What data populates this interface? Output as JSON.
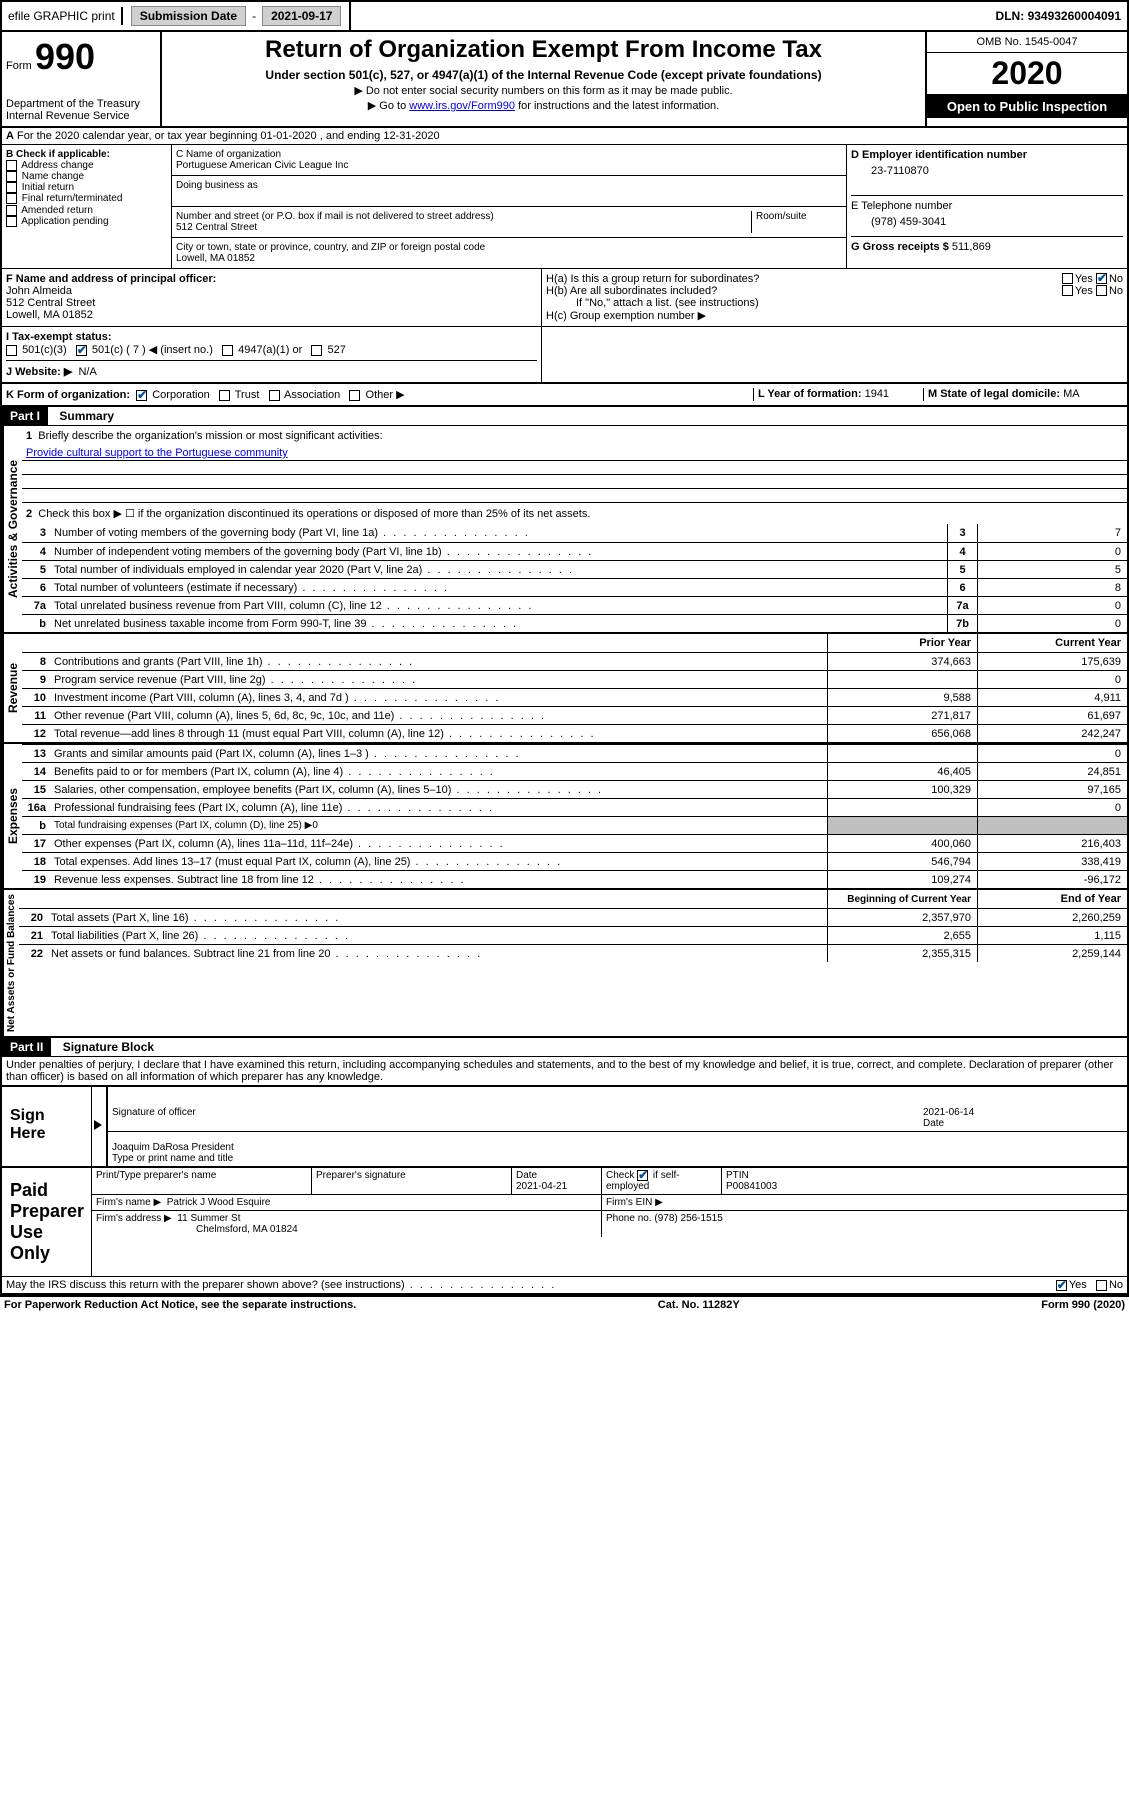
{
  "topbar": {
    "efile": "efile GRAPHIC print",
    "sub_label": "Submission Date",
    "sub_date": "2021-09-17",
    "dln_label": "DLN:",
    "dln": "93493260004091"
  },
  "header": {
    "form_label": "Form",
    "form_num": "990",
    "dept": "Department of the Treasury\nInternal Revenue Service",
    "title": "Return of Organization Exempt From Income Tax",
    "subtitle": "Under section 501(c), 527, or 4947(a)(1) of the Internal Revenue Code (except private foundations)",
    "inst1": "▶ Do not enter social security numbers on this form as it may be made public.",
    "inst2_pre": "▶ Go to ",
    "inst2_link": "www.irs.gov/Form990",
    "inst2_post": " for instructions and the latest information.",
    "omb": "OMB No. 1545-0047",
    "year": "2020",
    "inspect": "Open to Public Inspection"
  },
  "section_a": "For the 2020 calendar year, or tax year beginning 01-01-2020    , and ending 12-31-2020",
  "section_b": {
    "label": "B Check if applicable:",
    "items": [
      "Address change",
      "Name change",
      "Initial return",
      "Final return/terminated",
      "Amended return",
      "Application pending"
    ]
  },
  "section_c": {
    "name_label": "C Name of organization",
    "name": "Portuguese American Civic League Inc",
    "dba_label": "Doing business as",
    "street_label": "Number and street (or P.O. box if mail is not delivered to street address)",
    "room_label": "Room/suite",
    "street": "512 Central Street",
    "city_label": "City or town, state or province, country, and ZIP or foreign postal code",
    "city": "Lowell, MA  01852"
  },
  "section_d": {
    "ein_label": "D Employer identification number",
    "ein": "23-7110870",
    "phone_label": "E Telephone number",
    "phone": "(978) 459-3041",
    "gross_label": "G Gross receipts $",
    "gross": "511,869"
  },
  "section_f": {
    "label": "F Name and address of principal officer:",
    "name": "John Almeida",
    "street": "512 Central Street",
    "city": "Lowell, MA  01852"
  },
  "section_h": {
    "ha": "H(a)  Is this a group return for subordinates?",
    "hb": "H(b)  Are all subordinates included?",
    "hb_note": "If \"No,\" attach a list. (see instructions)",
    "hc": "H(c)  Group exemption number ▶",
    "yes": "Yes",
    "no": "No"
  },
  "tax_status": {
    "label": "I   Tax-exempt status:",
    "opts": [
      "501(c)(3)",
      "501(c) ( 7 ) ◀ (insert no.)",
      "4947(a)(1) or",
      "527"
    ]
  },
  "website": {
    "label": "J   Website: ▶",
    "val": "N/A"
  },
  "section_k": {
    "label": "K Form of organization:",
    "opts": [
      "Corporation",
      "Trust",
      "Association",
      "Other ▶"
    ]
  },
  "section_l": {
    "label": "L Year of formation:",
    "val": "1941"
  },
  "section_m": {
    "label": "M State of legal domicile:",
    "val": "MA"
  },
  "part1": {
    "header": "Part I",
    "title": "Summary",
    "governance_label": "Activities & Governance",
    "revenue_label": "Revenue",
    "expenses_label": "Expenses",
    "netassets_label": "Net Assets or Fund Balances",
    "line1_label": "Briefly describe the organization's mission or most significant activities:",
    "line1_val": "Provide cultural support to the Portuguese community",
    "line2": "Check this box ▶ ☐  if the organization discontinued its operations or disposed of more than 25% of its net assets.",
    "lines_simple": [
      {
        "n": "3",
        "t": "Number of voting members of the governing body (Part VI, line 1a)",
        "b": "3",
        "v": "7"
      },
      {
        "n": "4",
        "t": "Number of independent voting members of the governing body (Part VI, line 1b)",
        "b": "4",
        "v": "0"
      },
      {
        "n": "5",
        "t": "Total number of individuals employed in calendar year 2020 (Part V, line 2a)",
        "b": "5",
        "v": "5"
      },
      {
        "n": "6",
        "t": "Total number of volunteers (estimate if necessary)",
        "b": "6",
        "v": "8"
      },
      {
        "n": "7a",
        "t": "Total unrelated business revenue from Part VIII, column (C), line 12",
        "b": "7a",
        "v": "0"
      },
      {
        "n": "b",
        "t": "Net unrelated business taxable income from Form 990-T, line 39",
        "b": "7b",
        "v": "0"
      }
    ],
    "col_prior": "Prior Year",
    "col_current": "Current Year",
    "col_beg": "Beginning of Current Year",
    "col_end": "End of Year",
    "revenue_lines": [
      {
        "n": "8",
        "t": "Contributions and grants (Part VIII, line 1h)",
        "p": "374,663",
        "c": "175,639"
      },
      {
        "n": "9",
        "t": "Program service revenue (Part VIII, line 2g)",
        "p": "",
        "c": "0"
      },
      {
        "n": "10",
        "t": "Investment income (Part VIII, column (A), lines 3, 4, and 7d )",
        "p": "9,588",
        "c": "4,911"
      },
      {
        "n": "11",
        "t": "Other revenue (Part VIII, column (A), lines 5, 6d, 8c, 9c, 10c, and 11e)",
        "p": "271,817",
        "c": "61,697"
      },
      {
        "n": "12",
        "t": "Total revenue—add lines 8 through 11 (must equal Part VIII, column (A), line 12)",
        "p": "656,068",
        "c": "242,247"
      }
    ],
    "expense_lines": [
      {
        "n": "13",
        "t": "Grants and similar amounts paid (Part IX, column (A), lines 1–3 )",
        "p": "",
        "c": "0"
      },
      {
        "n": "14",
        "t": "Benefits paid to or for members (Part IX, column (A), line 4)",
        "p": "46,405",
        "c": "24,851"
      },
      {
        "n": "15",
        "t": "Salaries, other compensation, employee benefits (Part IX, column (A), lines 5–10)",
        "p": "100,329",
        "c": "97,165"
      },
      {
        "n": "16a",
        "t": "Professional fundraising fees (Part IX, column (A), line 11e)",
        "p": "",
        "c": "0"
      }
    ],
    "line16b": "Total fundraising expenses (Part IX, column (D), line 25) ▶0",
    "expense_lines2": [
      {
        "n": "17",
        "t": "Other expenses (Part IX, column (A), lines 11a–11d, 11f–24e)",
        "p": "400,060",
        "c": "216,403"
      },
      {
        "n": "18",
        "t": "Total expenses. Add lines 13–17 (must equal Part IX, column (A), line 25)",
        "p": "546,794",
        "c": "338,419"
      },
      {
        "n": "19",
        "t": "Revenue less expenses. Subtract line 18 from line 12",
        "p": "109,274",
        "c": "-96,172"
      }
    ],
    "asset_lines": [
      {
        "n": "20",
        "t": "Total assets (Part X, line 16)",
        "p": "2,357,970",
        "c": "2,260,259"
      },
      {
        "n": "21",
        "t": "Total liabilities (Part X, line 26)",
        "p": "2,655",
        "c": "1,115"
      },
      {
        "n": "22",
        "t": "Net assets or fund balances. Subtract line 21 from line 20",
        "p": "2,355,315",
        "c": "2,259,144"
      }
    ]
  },
  "part2": {
    "header": "Part II",
    "title": "Signature Block",
    "declaration": "Under penalties of perjury, I declare that I have examined this return, including accompanying schedules and statements, and to the best of my knowledge and belief, it is true, correct, and complete. Declaration of preparer (other than officer) is based on all information of which preparer has any knowledge.",
    "sign_here": "Sign Here",
    "sig_officer": "Signature of officer",
    "sig_date": "2021-06-14",
    "date_label": "Date",
    "officer_name": "Joaquim DaRosa  President",
    "officer_label": "Type or print name and title",
    "paid_prep": "Paid Preparer Use Only",
    "prep_name_label": "Print/Type preparer's name",
    "prep_sig_label": "Preparer's signature",
    "prep_date_label": "Date",
    "prep_date": "2021-04-21",
    "check_label": "Check",
    "self_emp": "if self-employed",
    "ptin_label": "PTIN",
    "ptin": "P00841003",
    "firm_name_label": "Firm's name    ▶",
    "firm_name": "Patrick J Wood Esquire",
    "firm_ein_label": "Firm's EIN ▶",
    "firm_addr_label": "Firm's address ▶",
    "firm_addr1": "11 Summer St",
    "firm_addr2": "Chelmsford, MA  01824",
    "firm_phone_label": "Phone no.",
    "firm_phone": "(978) 256-1515",
    "discuss": "May the IRS discuss this return with the preparer shown above? (see instructions)"
  },
  "footer": {
    "left": "For Paperwork Reduction Act Notice, see the separate instructions.",
    "center": "Cat. No. 11282Y",
    "right": "Form 990 (2020)"
  }
}
